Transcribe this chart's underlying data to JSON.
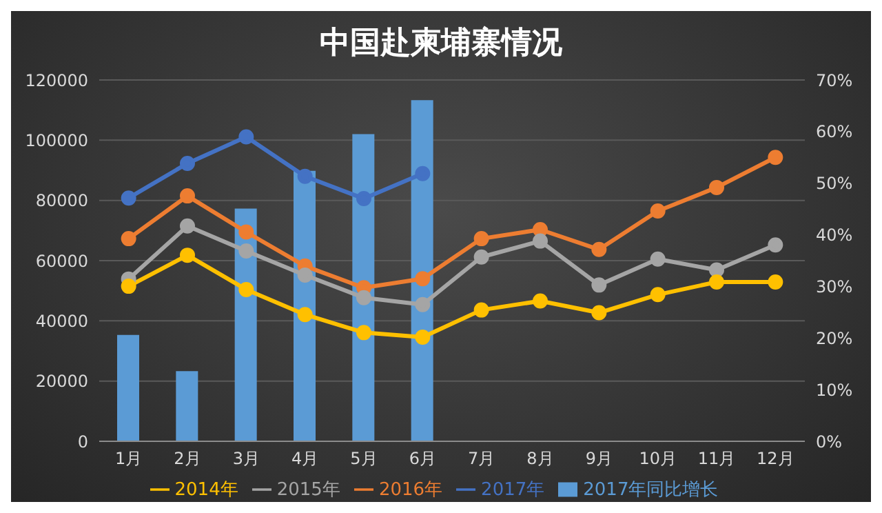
{
  "chart_data": {
    "type": "line",
    "title": "中国赴柬埔寨情况",
    "categories": [
      "1月",
      "2月",
      "3月",
      "4月",
      "5月",
      "6月",
      "7月",
      "8月",
      "9月",
      "10月",
      "11月",
      "12月"
    ],
    "series": [
      {
        "name": "2017年同比增长",
        "type": "bar",
        "axis": "y2",
        "color": "#5b9bd5",
        "values": [
          20.6,
          13.6,
          45.1,
          52.4,
          59.5,
          66.1,
          null,
          null,
          null,
          null,
          null,
          null
        ]
      },
      {
        "name": "2017年",
        "color": "#4472c4",
        "values": [
          80800,
          92300,
          101100,
          88000,
          80600,
          88900,
          null,
          null,
          null,
          null,
          null,
          null
        ]
      },
      {
        "name": "2016年",
        "color": "#ed7d31",
        "values": [
          67300,
          81500,
          69500,
          58200,
          51000,
          54000,
          67300,
          70300,
          63700,
          76500,
          84300,
          94300
        ]
      },
      {
        "name": "2015年",
        "color": "#a5a5a5",
        "values": [
          53900,
          71500,
          63200,
          55200,
          47700,
          45400,
          61200,
          66500,
          51900,
          60500,
          56900,
          65200
        ]
      },
      {
        "name": "2014年",
        "color": "#ffc000",
        "values": [
          51500,
          61800,
          50400,
          42100,
          36100,
          34600,
          43600,
          46600,
          42700,
          48700,
          52900,
          52900
        ]
      }
    ],
    "ylim": [
      0,
      120000
    ],
    "yticks": [
      0,
      20000,
      40000,
      60000,
      80000,
      100000,
      120000
    ],
    "y2lim": [
      0,
      70
    ],
    "y2ticks": [
      {
        "value": 0,
        "label": "0%"
      },
      {
        "value": 10,
        "label": "10%"
      },
      {
        "value": 20,
        "label": "20%"
      },
      {
        "value": 30,
        "label": "30%"
      },
      {
        "value": 40,
        "label": "40%"
      },
      {
        "value": 50,
        "label": "50%"
      },
      {
        "value": 60,
        "label": "60%"
      },
      {
        "value": 70,
        "label": "70%"
      }
    ],
    "grid": "y",
    "legend": "bottom",
    "marker": "circle",
    "line_style": "solid"
  }
}
